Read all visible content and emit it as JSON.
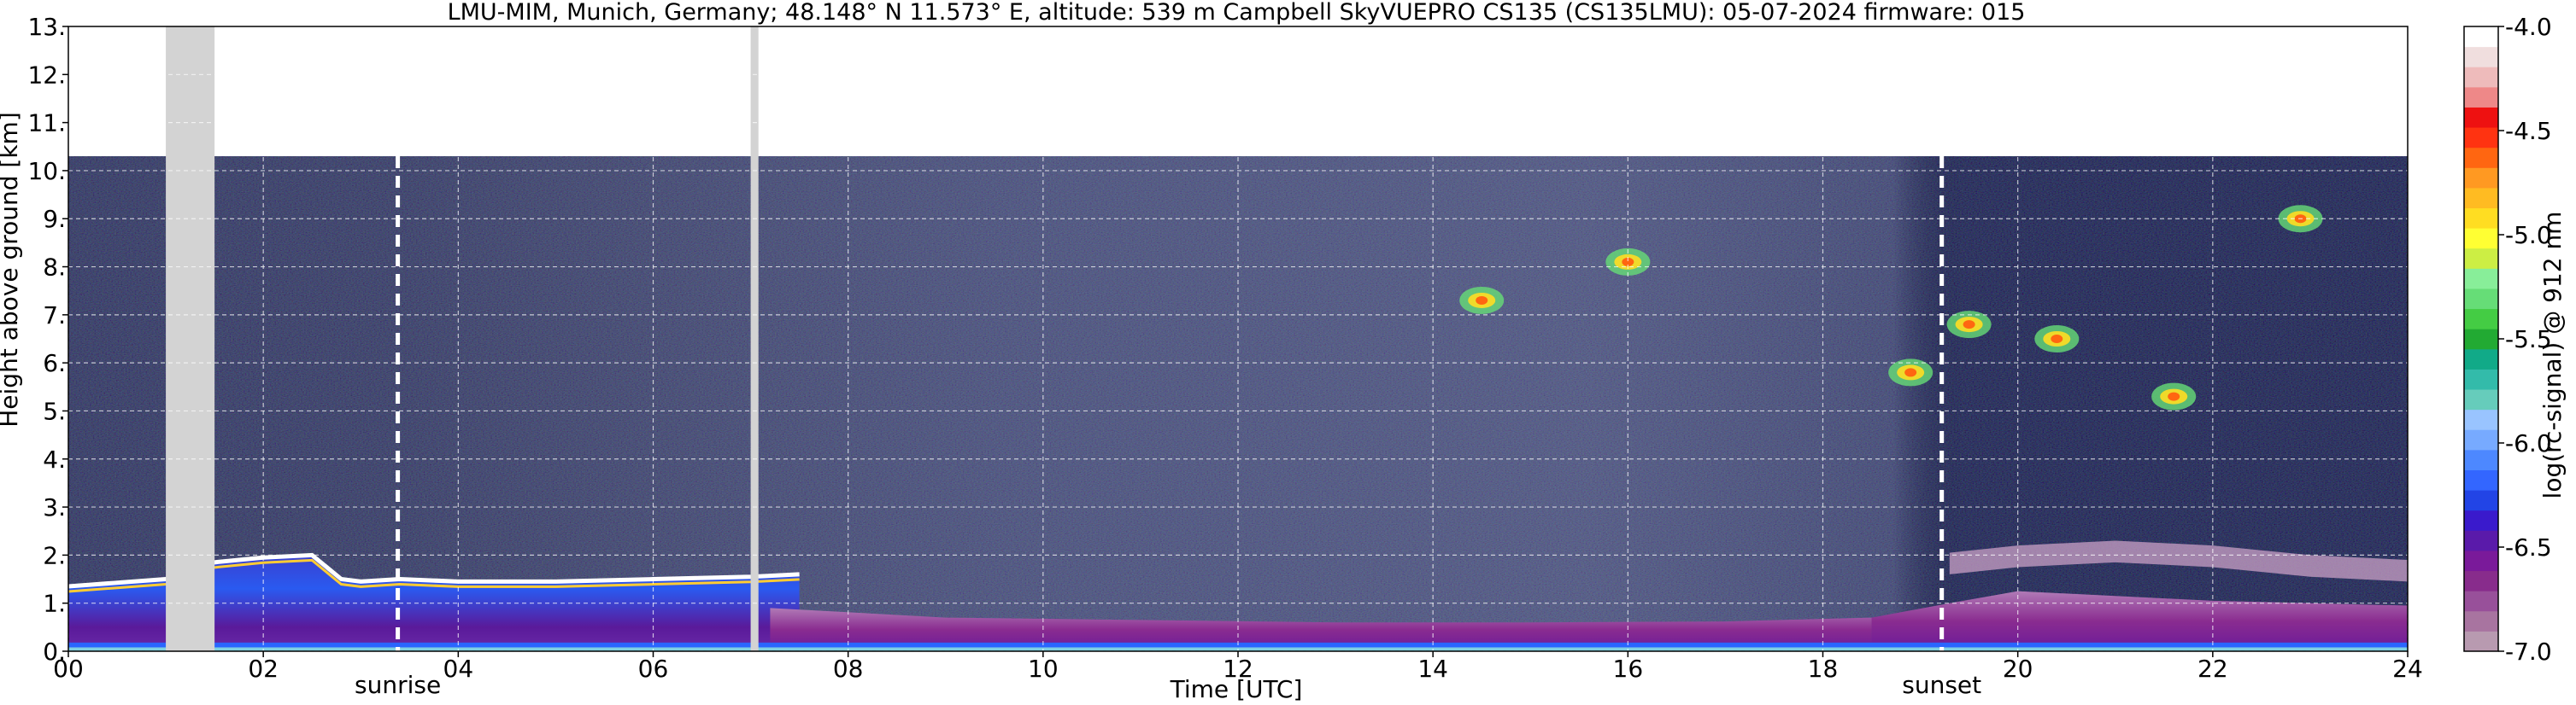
{
  "chart_data": {
    "type": "heatmap",
    "title": "LMU-MIM, Munich, Germany; 48.148° N 11.573° E, altitude: 539 m    Campbell SkyVUEPRO CS135 (CS135LMU): 05-07-2024    firmware: 015",
    "xlabel": "Time [UTC]",
    "ylabel": "Height above ground [km]",
    "colorbar_label": "log(rc-signal) @ 912 nm",
    "xlim": [
      0,
      24
    ],
    "ylim": [
      0,
      13
    ],
    "x_ticks": [
      0,
      2,
      4,
      6,
      8,
      10,
      12,
      14,
      16,
      18,
      20,
      22,
      24
    ],
    "x_tick_labels": [
      "00",
      "02",
      "04",
      "06",
      "08",
      "10",
      "12",
      "14",
      "16",
      "18",
      "20",
      "22",
      "24"
    ],
    "y_ticks": [
      0,
      1,
      2,
      3,
      4,
      5,
      6,
      7,
      8,
      9,
      10,
      11,
      12,
      13
    ],
    "y_tick_labels": [
      "0.",
      "1.",
      "2.",
      "3.",
      "4.",
      "5.",
      "6.",
      "7.",
      "8.",
      "9.",
      "10.",
      "11.",
      "12.",
      "13."
    ],
    "colorbar_range": [
      -7.0,
      -4.0
    ],
    "colorbar_ticks": [
      -7.0,
      -6.5,
      -6.0,
      -5.5,
      -5.0,
      -4.5,
      -4.0
    ],
    "colorbar_tick_labels": [
      "-7.0",
      "-6.5",
      "-6.0",
      "-5.5",
      "-5.0",
      "-4.5",
      "-4.0"
    ],
    "colorbar_colors": [
      "#b89ab0",
      "#a874a0",
      "#98509a",
      "#882c8c",
      "#7a1a9a",
      "#5a1aaa",
      "#3a1acc",
      "#2244e6",
      "#3366ff",
      "#4d88ff",
      "#77aaff",
      "#99c4ff",
      "#66ccbb",
      "#33bbaa",
      "#11aa88",
      "#22aa33",
      "#44cc44",
      "#66dd77",
      "#88ee99",
      "#ccee44",
      "#ffff33",
      "#ffdd22",
      "#ffbb22",
      "#ff9922",
      "#ff6611",
      "#ff3311",
      "#ee1111",
      "#ee8888",
      "#eebbbb",
      "#f0dede",
      "#ffffff"
    ],
    "data_max_height_km": 10.3,
    "no_data_periods": [
      [
        1.0,
        1.5
      ],
      [
        7.0,
        7.08
      ]
    ],
    "grid": true,
    "annotations": [
      {
        "label": "sunrise",
        "time": 3.38
      },
      {
        "label": "sunset",
        "time": 19.22
      }
    ],
    "layers": [
      {
        "kind": "boundary-layer top",
        "x": [
          0,
          1,
          1.5,
          2.0,
          2.5,
          2.8,
          3.0,
          3.4,
          4.0,
          5.0,
          6.0,
          7.0,
          7.5
        ],
        "height_km": [
          1.35,
          1.5,
          1.85,
          1.95,
          2.0,
          1.5,
          1.45,
          1.5,
          1.45,
          1.45,
          1.5,
          1.55,
          1.6
        ]
      },
      {
        "kind": "residual layer",
        "x": [
          19.3,
          20,
          21,
          22,
          23,
          24
        ],
        "height_km": [
          2.05,
          2.2,
          2.3,
          2.2,
          2.0,
          1.9
        ]
      },
      {
        "kind": "evening aerosol",
        "x": [
          18.5,
          19.3,
          20,
          21,
          22,
          23,
          24
        ],
        "height_km": [
          0.7,
          1.0,
          1.25,
          1.15,
          1.05,
          1.0,
          0.95
        ]
      }
    ],
    "cirrus_features": [
      {
        "time": 14.5,
        "height_km": 7.3
      },
      {
        "time": 16.0,
        "height_km": 8.1
      },
      {
        "time": 18.9,
        "height_km": 5.8
      },
      {
        "time": 19.5,
        "height_km": 6.8
      },
      {
        "time": 20.4,
        "height_km": 6.5
      },
      {
        "time": 21.6,
        "height_km": 5.3
      },
      {
        "time": 22.9,
        "height_km": 9.0
      }
    ]
  }
}
